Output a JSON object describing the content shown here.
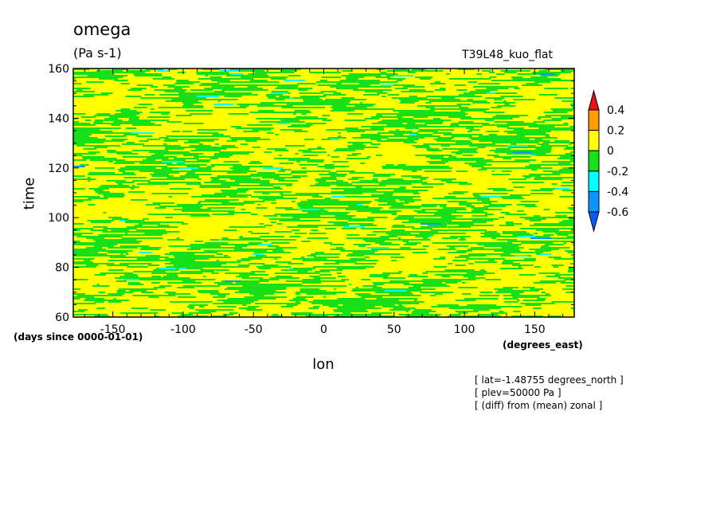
{
  "chart_data": {
    "type": "heatmap",
    "title": "omega",
    "units": "(Pa s-1)",
    "run_label": "T39L48_kuo_flat",
    "xlabel": "lon",
    "ylabel": "time",
    "x_units": "(degrees_east)",
    "y_units": "(days since 0000-01-01)",
    "xlim": [
      -178.125,
      178.125
    ],
    "ylim": [
      60,
      160
    ],
    "x_ticks": [
      -150,
      -100,
      -50,
      0,
      50,
      100,
      150
    ],
    "x_tick_labels": [
      "-150",
      "-100",
      "-50",
      "0",
      "50",
      "100",
      "150"
    ],
    "y_ticks": [
      60,
      80,
      100,
      120,
      140,
      160
    ],
    "y_tick_labels": [
      "60",
      "80",
      "100",
      "120",
      "140",
      "160"
    ],
    "colorbar": {
      "levels": [
        0.4,
        0.2,
        0,
        -0.2,
        -0.4,
        -0.6
      ],
      "level_labels": [
        "0.4",
        "0.2",
        "0",
        "-0.2",
        "-0.4",
        "-0.6"
      ],
      "colors": [
        "#e8141b",
        "#ff9c00",
        "#ffff00",
        "#18e018",
        "#00ffff",
        "#0a96ff",
        "#0a5aff"
      ],
      "extend": "both"
    },
    "field_description_colors": {
      "dominant_positive": "#ffff00",
      "dominant_negative": "#18e018"
    },
    "annotations": [
      "[ lat=-1.48755 degrees_north ]",
      "[ plev=50000 Pa ]",
      "[ (diff) from (mean) zonal ]"
    ]
  }
}
